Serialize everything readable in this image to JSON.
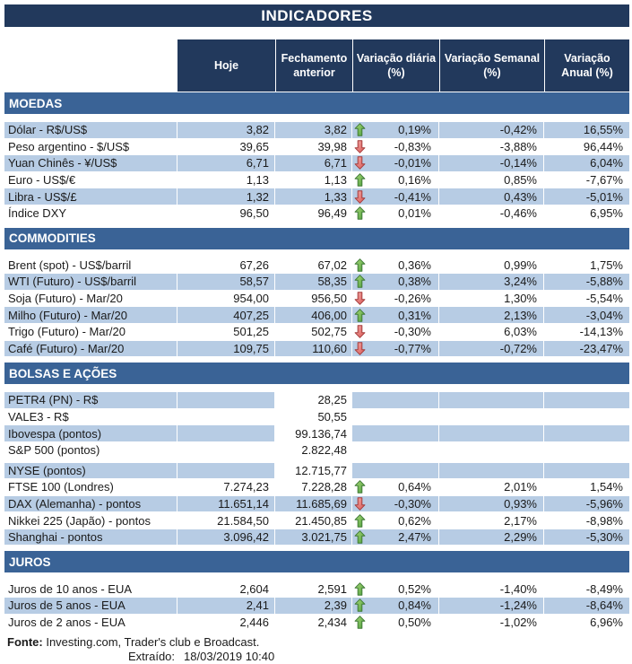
{
  "chart_data": {
    "type": "table",
    "title": "INDICADORES",
    "columns": [
      "Hoje",
      "Fechamento\nanterior",
      "Variação diária\n(%)",
      "Variação Semanal\n(%)",
      "Variação\nAnual (%)"
    ],
    "sections": [
      {
        "name": "MOEDAS",
        "rows": [
          {
            "label": "Dólar - R$/US$",
            "hoje": "3,82",
            "fechamento_anterior": "3,82",
            "arrow": "up",
            "variacao_diaria": "0,19%",
            "variacao_semanal": "-0,42%",
            "variacao_anual": "16,55%"
          },
          {
            "label": "Peso argentino - $/US$",
            "hoje": "39,65",
            "fechamento_anterior": "39,98",
            "arrow": "down",
            "variacao_diaria": "-0,83%",
            "variacao_semanal": "-3,88%",
            "variacao_anual": "96,44%"
          },
          {
            "label": "Yuan Chinês - ¥/US$",
            "hoje": "6,71",
            "fechamento_anterior": "6,71",
            "arrow": "down",
            "variacao_diaria": "-0,01%",
            "variacao_semanal": "-0,14%",
            "variacao_anual": "6,04%"
          },
          {
            "label": "Euro - US$/€",
            "hoje": "1,13",
            "fechamento_anterior": "1,13",
            "arrow": "up",
            "variacao_diaria": "0,16%",
            "variacao_semanal": "0,85%",
            "variacao_anual": "-7,67%"
          },
          {
            "label": "Libra - US$/£",
            "hoje": "1,32",
            "fechamento_anterior": "1,33",
            "arrow": "down",
            "variacao_diaria": "-0,41%",
            "variacao_semanal": "0,43%",
            "variacao_anual": "-5,01%"
          },
          {
            "label": "Índice DXY",
            "hoje": "96,50",
            "fechamento_anterior": "96,49",
            "arrow": "up",
            "variacao_diaria": "0,01%",
            "variacao_semanal": "-0,46%",
            "variacao_anual": "6,95%"
          }
        ]
      },
      {
        "name": "COMMODITIES",
        "rows": [
          {
            "label": "Brent (spot) - US$/barril",
            "hoje": "67,26",
            "fechamento_anterior": "67,02",
            "arrow": "up",
            "variacao_diaria": "0,36%",
            "variacao_semanal": "0,99%",
            "variacao_anual": "1,75%"
          },
          {
            "label": "WTI (Futuro) - US$/barril",
            "hoje": "58,57",
            "fechamento_anterior": "58,35",
            "arrow": "up",
            "variacao_diaria": "0,38%",
            "variacao_semanal": "3,24%",
            "variacao_anual": "-5,88%"
          },
          {
            "label": "Soja (Futuro) - Mar/20",
            "hoje": "954,00",
            "fechamento_anterior": "956,50",
            "arrow": "down",
            "variacao_diaria": "-0,26%",
            "variacao_semanal": "1,30%",
            "variacao_anual": "-5,54%"
          },
          {
            "label": "Milho (Futuro) - Mar/20",
            "hoje": "407,25",
            "fechamento_anterior": "406,00",
            "arrow": "up",
            "variacao_diaria": "0,31%",
            "variacao_semanal": "2,13%",
            "variacao_anual": "-3,04%"
          },
          {
            "label": "Trigo (Futuro) - Mar/20",
            "hoje": "501,25",
            "fechamento_anterior": "502,75",
            "arrow": "down",
            "variacao_diaria": "-0,30%",
            "variacao_semanal": "6,03%",
            "variacao_anual": "-14,13%"
          },
          {
            "label": "Café (Futuro) - Mar/20",
            "hoje": "109,75",
            "fechamento_anterior": "110,60",
            "arrow": "down",
            "variacao_diaria": "-0,77%",
            "variacao_semanal": "-0,72%",
            "variacao_anual": "-23,47%"
          }
        ]
      },
      {
        "name": "BOLSAS E AÇÕES",
        "rows": [
          {
            "label": "PETR4 (PN) - R$",
            "hoje": "",
            "fechamento_anterior": "28,25",
            "arrow": "",
            "variacao_diaria": "",
            "variacao_semanal": "",
            "variacao_anual": ""
          },
          {
            "label": "VALE3 - R$",
            "hoje": "",
            "fechamento_anterior": "50,55",
            "arrow": "",
            "variacao_diaria": "",
            "variacao_semanal": "",
            "variacao_anual": ""
          },
          {
            "label": "Ibovespa (pontos)",
            "hoje": "",
            "fechamento_anterior": "99.136,74",
            "arrow": "",
            "variacao_diaria": "",
            "variacao_semanal": "",
            "variacao_anual": ""
          },
          {
            "label": "S&P 500 (pontos)",
            "hoje": "",
            "fechamento_anterior": "2.822,48",
            "arrow": "",
            "variacao_diaria": "",
            "variacao_semanal": "",
            "variacao_anual": ""
          },
          {
            "label": "NYSE (pontos)",
            "hoje": "",
            "fechamento_anterior": "12.715,77",
            "arrow": "",
            "variacao_diaria": "",
            "variacao_semanal": "",
            "variacao_anual": ""
          },
          {
            "label": "FTSE 100 (Londres)",
            "hoje": "7.274,23",
            "fechamento_anterior": "7.228,28",
            "arrow": "up",
            "variacao_diaria": "0,64%",
            "variacao_semanal": "2,01%",
            "variacao_anual": "1,54%"
          },
          {
            "label": "DAX (Alemanha) - pontos",
            "hoje": "11.651,14",
            "fechamento_anterior": "11.685,69",
            "arrow": "down",
            "variacao_diaria": "-0,30%",
            "variacao_semanal": "0,93%",
            "variacao_anual": "-5,96%"
          },
          {
            "label": "Nikkei 225 (Japão) - pontos",
            "hoje": "21.584,50",
            "fechamento_anterior": "21.450,85",
            "arrow": "up",
            "variacao_diaria": "0,62%",
            "variacao_semanal": "2,17%",
            "variacao_anual": "-8,98%"
          },
          {
            "label": "Shanghai - pontos",
            "hoje": "3.096,42",
            "fechamento_anterior": "3.021,75",
            "arrow": "up",
            "variacao_diaria": "2,47%",
            "variacao_semanal": "2,29%",
            "variacao_anual": "-5,30%"
          }
        ]
      },
      {
        "name": "JUROS",
        "rows": [
          {
            "label": "Juros de 10 anos - EUA",
            "hoje": "2,604",
            "fechamento_anterior": "2,591",
            "arrow": "up",
            "variacao_diaria": "0,52%",
            "variacao_semanal": "-1,40%",
            "variacao_anual": "-8,49%"
          },
          {
            "label": "Juros de 5 anos - EUA",
            "hoje": "2,41",
            "fechamento_anterior": "2,39",
            "arrow": "up",
            "variacao_diaria": "0,84%",
            "variacao_semanal": "-1,24%",
            "variacao_anual": "-8,64%"
          },
          {
            "label": "Juros de 2 anos - EUA",
            "hoje": "2,446",
            "fechamento_anterior": "2,434",
            "arrow": "up",
            "variacao_diaria": "0,50%",
            "variacao_semanal": "-1,02%",
            "variacao_anual": "6,96%"
          }
        ]
      }
    ],
    "footer": {
      "fonte_label": "Fonte:",
      "fonte_text": " Investing.com, Trader's club e Broadcast.",
      "extraido_label": "Extraído:",
      "extraido_value": "18/03/2019 10:40"
    },
    "colors": {
      "header_navy": "#22395C",
      "section_blue": "#3A6396",
      "row_shaded": "#B7CCE4",
      "arrow_up_green": "#4E9E3D",
      "arrow_down_red": "#DE6360"
    }
  }
}
